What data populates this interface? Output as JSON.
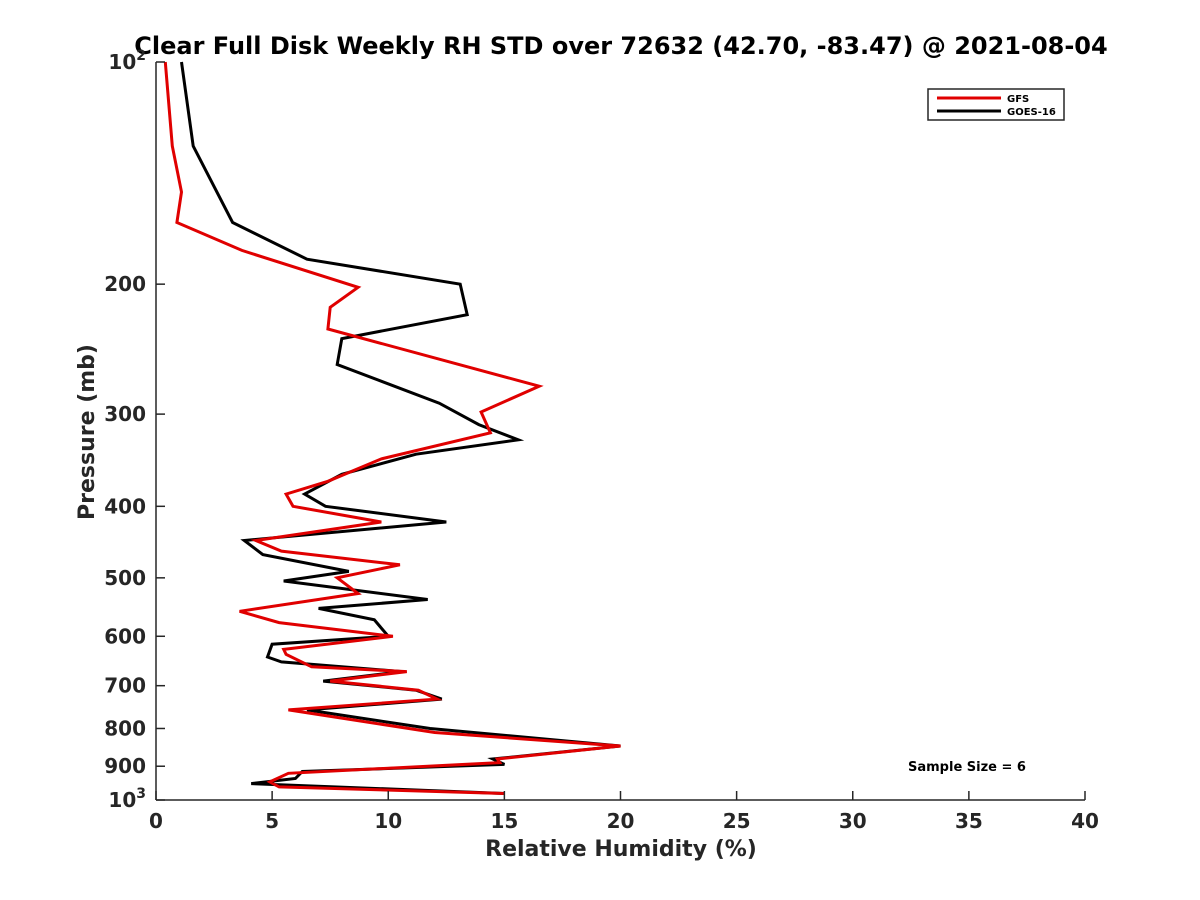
{
  "chart_data": {
    "type": "line",
    "title": "Clear Full Disk Weekly RH STD over 72632 (42.70, -83.47) @ 2021-08-04",
    "xlabel": "Relative Humidity (%)",
    "ylabel": "Pressure (mb)",
    "xlim": [
      0,
      40
    ],
    "ylim": [
      100,
      1000
    ],
    "y_scale": "log",
    "y_reversed": true,
    "x_ticks": [
      0,
      5,
      10,
      15,
      20,
      25,
      30,
      35,
      40
    ],
    "x_tick_labels": [
      "0",
      "5",
      "10",
      "15",
      "20",
      "25",
      "30",
      "35",
      "40"
    ],
    "y_ticks": [
      100,
      200,
      300,
      400,
      500,
      600,
      700,
      800,
      900,
      1000
    ],
    "y_tick_labels": [
      {
        "base": "10",
        "sup": "2"
      },
      {
        "base": "200",
        "sup": ""
      },
      {
        "base": "300",
        "sup": ""
      },
      {
        "base": "400",
        "sup": ""
      },
      {
        "base": "500",
        "sup": ""
      },
      {
        "base": "600",
        "sup": ""
      },
      {
        "base": "700",
        "sup": ""
      },
      {
        "base": "800",
        "sup": ""
      },
      {
        "base": "900",
        "sup": ""
      },
      {
        "base": "10",
        "sup": "3"
      }
    ],
    "grid": false,
    "legend_position": "top-right",
    "annotation": "Sample Size = 6",
    "series": [
      {
        "name": "GFS",
        "color": "#e00000",
        "x": [
          0.4,
          0.7,
          1.1,
          0.9,
          3.7,
          8.7,
          7.5,
          7.4,
          16.5,
          14.0,
          14.4,
          9.7,
          7.4,
          5.6,
          5.9,
          9.7,
          4.3,
          5.4,
          10.5,
          7.8,
          8.7,
          3.6,
          5.3,
          10.2,
          5.5,
          5.6,
          6.7,
          10.8,
          7.5,
          11.3,
          12.1,
          5.7,
          12.0,
          20.0,
          14.7,
          14.8,
          5.7,
          4.9,
          5.3,
          15.0
        ],
        "y": [
          100,
          130,
          150,
          165,
          180,
          202,
          215,
          230,
          275,
          298,
          318,
          345,
          370,
          385,
          400,
          420,
          445,
          460,
          480,
          500,
          525,
          555,
          575,
          600,
          625,
          635,
          660,
          670,
          690,
          710,
          730,
          755,
          810,
          845,
          880,
          890,
          920,
          945,
          960,
          980
        ]
      },
      {
        "name": "GOES-16",
        "color": "#000000",
        "x": [
          1.1,
          1.6,
          3.3,
          6.5,
          13.1,
          13.4,
          8.0,
          7.8,
          12.2,
          13.9,
          15.6,
          11.2,
          8.0,
          6.4,
          7.3,
          12.5,
          3.8,
          4.6,
          8.3,
          5.5,
          11.7,
          7.0,
          9.4,
          10.0,
          5.0,
          4.8,
          5.4,
          10.6,
          7.2,
          11.2,
          12.3,
          6.5,
          11.8,
          20.0,
          14.5,
          15.0,
          6.3,
          6.0,
          4.1,
          15.0
        ],
        "y": [
          100,
          130,
          165,
          185,
          200,
          220,
          237,
          257,
          290,
          310,
          325,
          340,
          362,
          385,
          400,
          420,
          445,
          465,
          490,
          505,
          535,
          550,
          570,
          600,
          615,
          640,
          650,
          670,
          690,
          710,
          730,
          755,
          800,
          845,
          880,
          895,
          915,
          935,
          950,
          980
        ]
      }
    ]
  }
}
